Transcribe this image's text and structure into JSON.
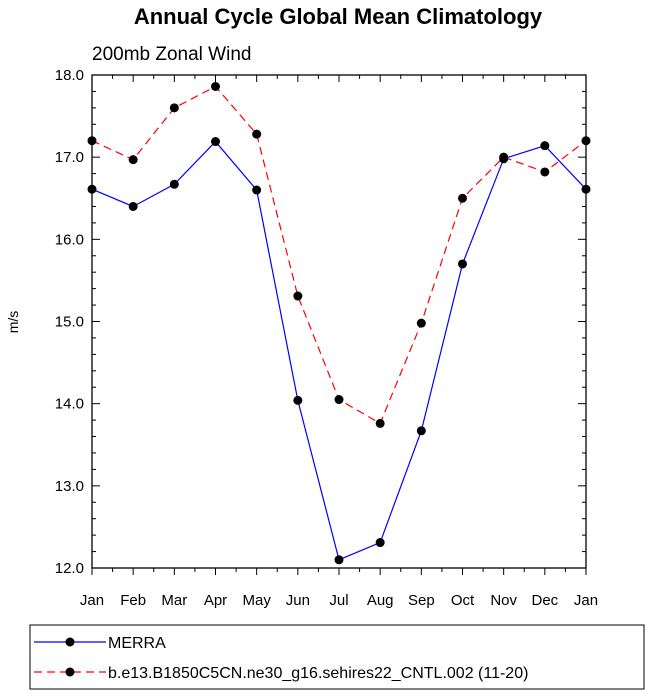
{
  "chart_data": {
    "type": "line",
    "title": "Annual Cycle Global Mean Climatology",
    "subtitle": "200mb Zonal Wind",
    "xlabel": "",
    "ylabel": "m/s",
    "ylim": [
      12.0,
      18.0
    ],
    "y_ticks": [
      "12.0",
      "13.0",
      "14.0",
      "15.0",
      "16.0",
      "17.0",
      "18.0"
    ],
    "categories": [
      "Jan",
      "Feb",
      "Mar",
      "Apr",
      "May",
      "Jun",
      "Jul",
      "Aug",
      "Sep",
      "Oct",
      "Nov",
      "Dec",
      "Jan"
    ],
    "series": [
      {
        "name": "MERRA",
        "color": "#0000ff",
        "dash": "solid",
        "values": [
          16.61,
          16.4,
          16.67,
          17.19,
          16.6,
          14.04,
          12.1,
          12.31,
          13.67,
          15.7,
          16.98,
          17.14,
          16.61
        ]
      },
      {
        "name": "b.e13.B1850C5CN.ne30_g16.sehires22_CNTL.002 (11-20)",
        "color": "#ff0000",
        "dash": "dashed",
        "values": [
          17.2,
          16.97,
          17.6,
          17.86,
          17.28,
          15.31,
          14.05,
          13.76,
          14.98,
          16.5,
          17.0,
          16.82,
          17.2
        ]
      }
    ],
    "legend_position": "bottom"
  }
}
